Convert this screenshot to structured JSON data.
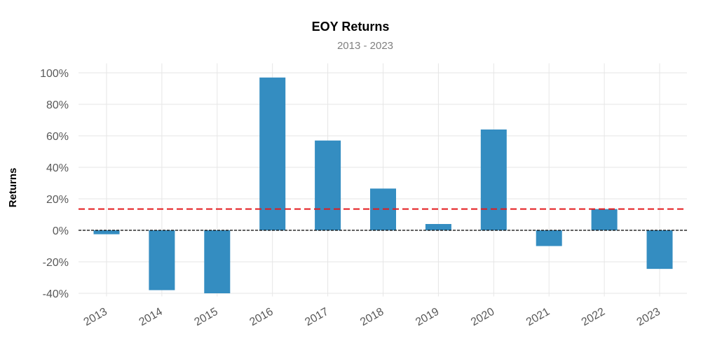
{
  "chart_data": {
    "type": "bar",
    "title": "EOY Returns",
    "subtitle": "2013 - 2023",
    "xlabel": "",
    "ylabel": "Returns",
    "categories": [
      "2013",
      "2014",
      "2015",
      "2016",
      "2017",
      "2018",
      "2019",
      "2020",
      "2021",
      "2022",
      "2023"
    ],
    "values": [
      -2.5,
      -38,
      -40,
      97,
      57,
      26.5,
      4,
      64,
      -10,
      13.5,
      -24.5
    ],
    "y_ticks": [
      100,
      80,
      60,
      40,
      20,
      0,
      -20,
      -40
    ],
    "y_tick_labels": [
      "100%",
      "80%",
      "60%",
      "40%",
      "20%",
      "0%",
      "-20%",
      "-40%"
    ],
    "ylim": [
      -42,
      106
    ],
    "mean_line": 13.5,
    "zero_line": 0,
    "grid": true,
    "legend": "none",
    "colors": {
      "bar": "#348dc1",
      "mean_line": "#e31a1c",
      "zero_line": "#000000",
      "grid": "#e6e6e6",
      "tick_text": "#595959"
    }
  }
}
